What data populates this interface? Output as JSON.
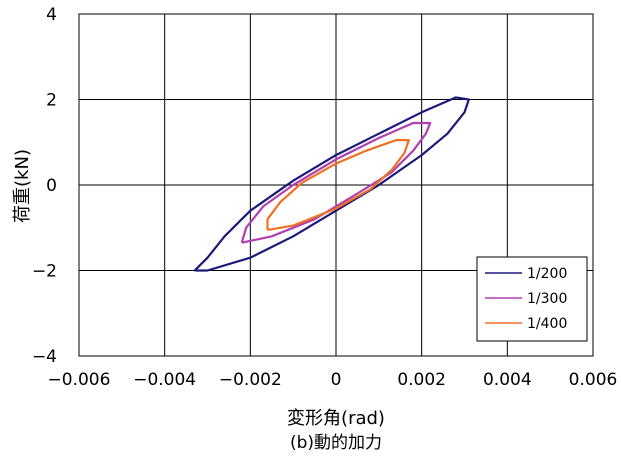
{
  "caption": "(b)動的加力",
  "chart_data": {
    "type": "line",
    "title": "",
    "xlabel": "変形角(rad)",
    "ylabel": "荷重(kN)",
    "xlim": [
      -0.006,
      0.006
    ],
    "ylim": [
      -4,
      4
    ],
    "x_ticks": [
      "-0.006",
      "-0.004",
      "-0.002",
      "0",
      "0.002",
      "0.004",
      "0.006"
    ],
    "y_ticks": [
      "-4",
      "-2",
      "0",
      "2",
      "4"
    ],
    "grid": true,
    "legend_position": "bottom-right",
    "series": [
      {
        "name": "1/200",
        "color": "#1a1a7a",
        "points": [
          [
            -0.0033,
            -2.0
          ],
          [
            -0.003,
            -2.0
          ],
          [
            -0.002,
            -1.7
          ],
          [
            -0.001,
            -1.2
          ],
          [
            0.0,
            -0.6
          ],
          [
            0.001,
            0.0
          ],
          [
            0.002,
            0.7
          ],
          [
            0.0026,
            1.2
          ],
          [
            0.003,
            1.7
          ],
          [
            0.0031,
            2.0
          ],
          [
            0.0028,
            2.05
          ],
          [
            0.002,
            1.7
          ],
          [
            0.001,
            1.2
          ],
          [
            0.0,
            0.7
          ],
          [
            -0.001,
            0.1
          ],
          [
            -0.002,
            -0.6
          ],
          [
            -0.0026,
            -1.2
          ],
          [
            -0.003,
            -1.7
          ],
          [
            -0.0033,
            -2.0
          ]
        ]
      },
      {
        "name": "1/300",
        "color": "#b040b0",
        "points": [
          [
            -0.0022,
            -1.35
          ],
          [
            -0.0015,
            -1.2
          ],
          [
            -0.0005,
            -0.8
          ],
          [
            0.0005,
            -0.2
          ],
          [
            0.0013,
            0.3
          ],
          [
            0.0018,
            0.8
          ],
          [
            0.0021,
            1.2
          ],
          [
            0.0022,
            1.45
          ],
          [
            0.0018,
            1.45
          ],
          [
            0.001,
            1.1
          ],
          [
            0.0,
            0.6
          ],
          [
            -0.001,
            0.0
          ],
          [
            -0.0017,
            -0.5
          ],
          [
            -0.0021,
            -1.0
          ],
          [
            -0.0022,
            -1.35
          ]
        ]
      },
      {
        "name": "1/400",
        "color": "#f07020",
        "points": [
          [
            -0.0016,
            -1.05
          ],
          [
            -0.001,
            -0.95
          ],
          [
            0.0,
            -0.55
          ],
          [
            0.0008,
            -0.1
          ],
          [
            0.0013,
            0.35
          ],
          [
            0.0016,
            0.75
          ],
          [
            0.0017,
            1.05
          ],
          [
            0.0014,
            1.05
          ],
          [
            0.0007,
            0.8
          ],
          [
            0.0,
            0.5
          ],
          [
            -0.0008,
            0.05
          ],
          [
            -0.0013,
            -0.4
          ],
          [
            -0.0016,
            -0.8
          ],
          [
            -0.0016,
            -1.05
          ]
        ]
      }
    ]
  }
}
